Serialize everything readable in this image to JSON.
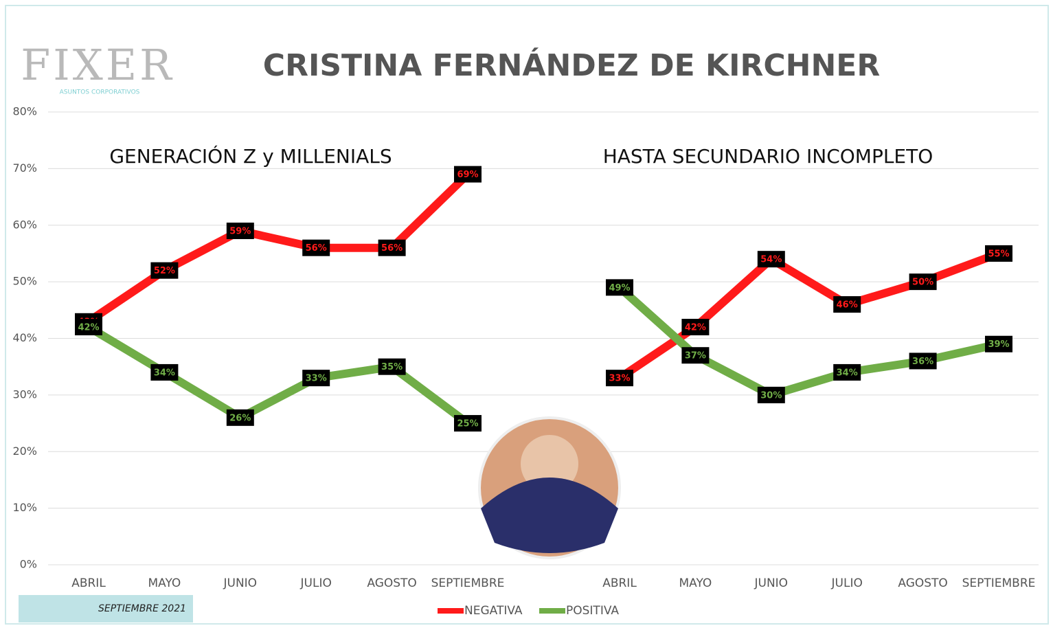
{
  "logo": {
    "name": "FIXER",
    "tagline": "ASUNTOS CORPORATIVOS"
  },
  "date_label": "SEPTIEMBRE 2021",
  "chart_data": {
    "type": "line",
    "title": "CRISTINA FERNÁNDEZ DE KIRCHNER",
    "ylim": [
      0,
      80
    ],
    "yticks": [
      {
        "value": 0,
        "label": "0%"
      },
      {
        "value": 10,
        "label": "10%"
      },
      {
        "value": 20,
        "label": "20%"
      },
      {
        "value": 30,
        "label": "30%"
      },
      {
        "value": 40,
        "label": "40%"
      },
      {
        "value": 50,
        "label": "50%"
      },
      {
        "value": 60,
        "label": "60%"
      },
      {
        "value": 70,
        "label": "70%"
      },
      {
        "value": 80,
        "label": "80%"
      }
    ],
    "grid": true,
    "legend": [
      {
        "name": "NEGATIVA",
        "color": "#ff1a1a"
      },
      {
        "name": "POSITIVA",
        "color": "#70ad47"
      }
    ],
    "panels": [
      {
        "subtitle": "GENERACIÓN Z y MILLENIALS",
        "categories": [
          "ABRIL",
          "MAYO",
          "JUNIO",
          "JULIO",
          "AGOSTO",
          "SEPTIEMBRE"
        ],
        "series": [
          {
            "values": [
              43,
              52,
              59,
              56,
              56,
              69
            ],
            "value_labels": [
              "43%",
              "52%",
              "59%",
              "56%",
              "56%",
              "69%"
            ]
          },
          {
            "values": [
              42,
              34,
              26,
              33,
              35,
              25
            ],
            "value_labels": [
              "42%",
              "34%",
              "26%",
              "33%",
              "35%",
              "25%"
            ]
          }
        ]
      },
      {
        "subtitle": "HASTA SECUNDARIO INCOMPLETO",
        "categories": [
          "ABRIL",
          "MAYO",
          "JUNIO",
          "JULIO",
          "AGOSTO",
          "SEPTIEMBRE"
        ],
        "series": [
          {
            "values": [
              33,
              42,
              54,
              46,
              50,
              55
            ],
            "value_labels": [
              "33%",
              "42%",
              "54%",
              "46%",
              "50%",
              "55%"
            ]
          },
          {
            "values": [
              49,
              37,
              30,
              34,
              36,
              39
            ],
            "value_labels": [
              "49%",
              "37%",
              "30%",
              "34%",
              "36%",
              "39%"
            ]
          }
        ]
      }
    ]
  }
}
